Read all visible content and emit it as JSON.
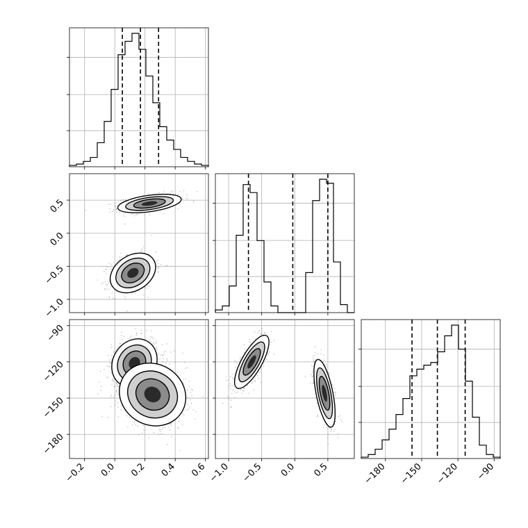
{
  "chart_data": {
    "type": "corner",
    "grid": true,
    "colors": {
      "line": "#000000",
      "grid": "#b0b0b0",
      "points": "#555555"
    },
    "variables": [
      {
        "ticks": [
          -0.2,
          0.0,
          0.2,
          0.4,
          0.6
        ],
        "tick_labels": [
          "−0.2",
          "0.0",
          "0.2",
          "0.4",
          "0.6"
        ],
        "range": [
          -0.3,
          0.62
        ],
        "quantiles": [
          0.05,
          0.17,
          0.29
        ],
        "hist": [
          0.01,
          0.02,
          0.04,
          0.07,
          0.18,
          0.34,
          0.58,
          0.84,
          0.94,
          1.0,
          0.88,
          0.68,
          0.48,
          0.3,
          0.2,
          0.13,
          0.07,
          0.04,
          0.02,
          0.01
        ]
      },
      {
        "ticks": [
          -1.0,
          -0.5,
          0.0,
          0.5
        ],
        "tick_labels": [
          "−1.0",
          "−0.5",
          "0.0",
          "0.5"
        ],
        "range": [
          -1.2,
          0.9
        ],
        "quantiles": [
          -0.7,
          -0.03,
          0.5
        ],
        "hist": [
          0.02,
          0.05,
          0.2,
          0.58,
          0.96,
          0.9,
          0.54,
          0.23,
          0.05,
          0.0,
          0.0,
          0.0,
          0.0,
          0.3,
          0.84,
          1.0,
          0.97,
          0.38,
          0.06,
          0.0
        ]
      },
      {
        "ticks": [
          -180,
          -150,
          -120,
          -90
        ],
        "tick_labels": [
          "−180",
          "−150",
          "−120",
          "−90"
        ],
        "range": [
          -200,
          -85
        ],
        "quantiles": [
          -158,
          -137,
          -114
        ],
        "hist": [
          0.01,
          0.03,
          0.07,
          0.14,
          0.22,
          0.33,
          0.45,
          0.62,
          0.67,
          0.7,
          0.72,
          0.8,
          0.92,
          1.0,
          0.82,
          0.58,
          0.31,
          0.1,
          0.03,
          0.01
        ]
      }
    ],
    "pairs": [
      {
        "row": 1,
        "col": 0,
        "n_points": 1100,
        "modes": [
          {
            "center": [
              0.23,
              0.45
            ],
            "sd": [
              0.105,
              0.07
            ],
            "rho": 0.45,
            "weight": 0.5
          },
          {
            "center": [
              0.12,
              -0.6
            ],
            "sd": [
              0.075,
              0.15
            ],
            "rho": 0.3,
            "weight": 0.5
          }
        ]
      },
      {
        "row": 2,
        "col": 0,
        "n_points": 1800,
        "modes": [
          {
            "center": [
              0.13,
              -121
            ],
            "sd": [
              0.075,
              10
            ],
            "rho": 0.15,
            "weight": 0.55
          },
          {
            "center": [
              0.25,
              -147
            ],
            "sd": [
              0.11,
              13
            ],
            "rho": -0.1,
            "weight": 0.45
          }
        ]
      },
      {
        "row": 2,
        "col": 1,
        "n_points": 1100,
        "modes": [
          {
            "center": [
              -0.65,
              -120
            ],
            "sd": [
              0.13,
              11
            ],
            "rho": 0.75,
            "weight": 0.5
          },
          {
            "center": [
              0.45,
              -146
            ],
            "sd": [
              0.08,
              14
            ],
            "rho": -0.6,
            "weight": 0.5
          }
        ]
      }
    ]
  }
}
